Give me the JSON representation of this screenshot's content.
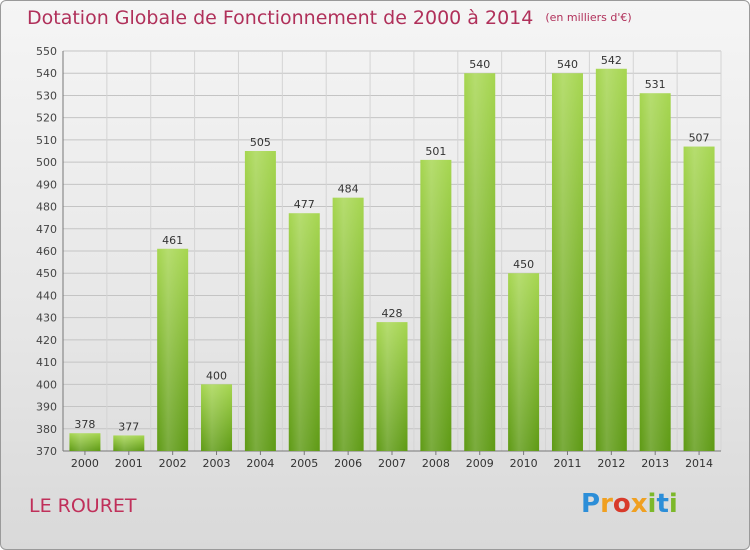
{
  "header": {
    "title": "Dotation Globale de Fonctionnement de 2000 à 2014",
    "unit": "(en milliers d'€)"
  },
  "footer": {
    "commune": "LE ROURET",
    "logo_text": "Proxiti"
  },
  "colors": {
    "title": "#b0305a",
    "bar_light": "#a2d24e",
    "bar_dark": "#5e9a14",
    "grid": "#c8c8c8"
  },
  "chart_data": {
    "type": "bar",
    "title": "Dotation Globale de Fonctionnement de 2000 à 2014",
    "subtitle": "(en milliers d'€)",
    "xlabel": "",
    "ylabel": "",
    "categories": [
      "2000",
      "2001",
      "2002",
      "2003",
      "2004",
      "2005",
      "2006",
      "2007",
      "2008",
      "2009",
      "2010",
      "2011",
      "2012",
      "2013",
      "2014"
    ],
    "values": [
      378,
      377,
      461,
      400,
      505,
      477,
      484,
      428,
      501,
      540,
      450,
      540,
      542,
      531,
      507
    ],
    "ylim": [
      370,
      550
    ],
    "yticks": [
      370,
      380,
      390,
      400,
      410,
      420,
      430,
      440,
      450,
      460,
      470,
      480,
      490,
      500,
      510,
      520,
      530,
      540,
      550
    ],
    "grid": true,
    "data_labels": true
  }
}
